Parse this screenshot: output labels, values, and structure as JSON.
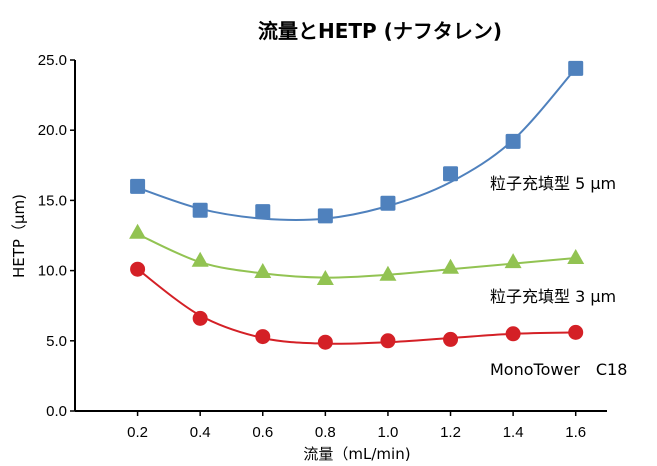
{
  "chart_data": {
    "type": "scatter",
    "title": "流量とHETP (ナフタレン)",
    "xlabel": "流量（mL/min)",
    "ylabel": "HETP（μm)",
    "x": [
      0.2,
      0.4,
      0.6,
      0.8,
      1.0,
      1.2,
      1.4,
      1.6
    ],
    "xlim": [
      0.0,
      1.7
    ],
    "ylim": [
      0.0,
      25.0
    ],
    "x_ticks": [
      "0.2",
      "0.4",
      "0.6",
      "0.8",
      "1.0",
      "1.2",
      "1.4",
      "1.6"
    ],
    "y_ticks": [
      "0.0",
      "5.0",
      "10.0",
      "15.0",
      "20.0",
      "25.0"
    ],
    "grid": false,
    "legend": "labels beside series on right",
    "series": [
      {
        "name": "粒子充填型 5 μm",
        "marker": "square",
        "color": "#4f81bd",
        "values": [
          16.0,
          14.3,
          14.2,
          13.9,
          14.8,
          16.9,
          19.2,
          24.4
        ],
        "fit": [
          15.9,
          14.4,
          13.7,
          13.7,
          14.6,
          16.3,
          19.3,
          24.4
        ]
      },
      {
        "name": "粒子充填型 3 μm",
        "marker": "triangle",
        "color": "#92c352",
        "values": [
          12.7,
          10.7,
          9.9,
          9.4,
          9.7,
          10.2,
          10.6,
          10.9
        ],
        "fit": [
          12.6,
          10.6,
          9.8,
          9.5,
          9.7,
          10.1,
          10.5,
          10.9
        ]
      },
      {
        "name": "MonoTower　C18",
        "marker": "circle",
        "color": "#d42026",
        "values": [
          10.1,
          6.6,
          5.3,
          4.9,
          5.0,
          5.1,
          5.5,
          5.6
        ],
        "fit": [
          10.1,
          6.8,
          5.2,
          4.8,
          4.9,
          5.2,
          5.5,
          5.6
        ]
      }
    ]
  }
}
